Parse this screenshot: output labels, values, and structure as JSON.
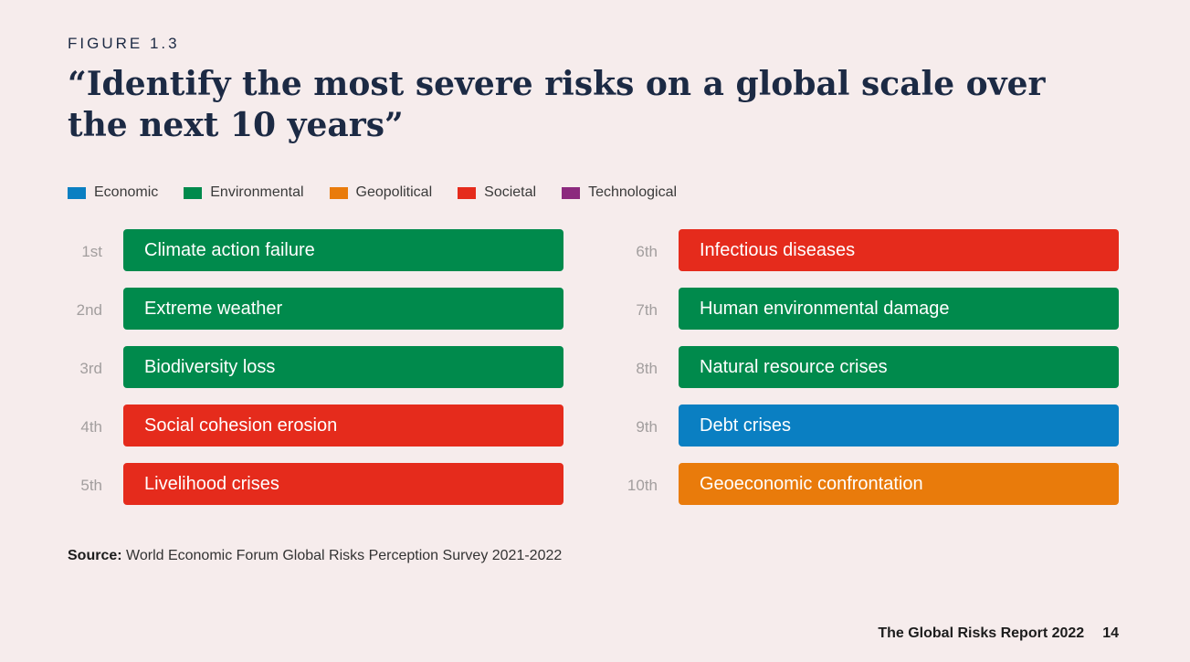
{
  "figure_label": "FIGURE 1.3",
  "title": "“Identify the most severe risks on a global scale over the next 10 years”",
  "legend": [
    {
      "label": "Economic",
      "color": "#0a7fc2"
    },
    {
      "label": "Environmental",
      "color": "#008a4c"
    },
    {
      "label": "Geopolitical",
      "color": "#e97b0b"
    },
    {
      "label": "Societal",
      "color": "#e52b1c"
    },
    {
      "label": "Technological",
      "color": "#8c2a7e"
    }
  ],
  "risks": [
    {
      "rank": "1st",
      "label": "Climate action failure",
      "color": "#008a4c"
    },
    {
      "rank": "2nd",
      "label": "Extreme weather",
      "color": "#008a4c"
    },
    {
      "rank": "3rd",
      "label": "Biodiversity loss",
      "color": "#008a4c"
    },
    {
      "rank": "4th",
      "label": "Social cohesion erosion",
      "color": "#e52b1c"
    },
    {
      "rank": "5th",
      "label": "Livelihood crises",
      "color": "#e52b1c"
    },
    {
      "rank": "6th",
      "label": "Infectious diseases",
      "color": "#e52b1c"
    },
    {
      "rank": "7th",
      "label": "Human environmental damage",
      "color": "#008a4c"
    },
    {
      "rank": "8th",
      "label": "Natural resource crises",
      "color": "#008a4c"
    },
    {
      "rank": "9th",
      "label": "Debt crises",
      "color": "#0a7fc2"
    },
    {
      "rank": "10th",
      "label": "Geoeconomic confrontation",
      "color": "#e97b0b"
    }
  ],
  "source": {
    "prefix": "Source:",
    "text": " World Economic Forum Global Risks Perception Survey 2021-2022"
  },
  "footer": {
    "report": "The Global Risks Report 2022",
    "page": "14"
  }
}
